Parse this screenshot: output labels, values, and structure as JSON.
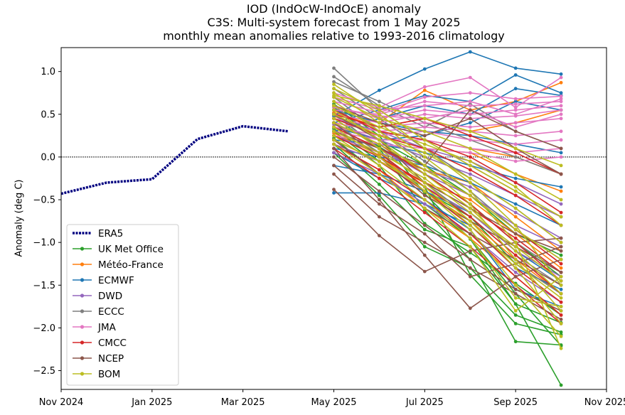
{
  "chart_data": {
    "type": "line",
    "title_lines": [
      "IOD (IndOcW-IndOcE) anomaly",
      "C3S: Multi-system forecast from 1 May 2025",
      "monthly mean anomalies relative to 1993-2016 climatology"
    ],
    "xlabel": "",
    "ylabel": "Anomaly (deg C)",
    "ylim": [
      -2.72,
      1.28
    ],
    "xlim_months": [
      "2024-11",
      "2025-11"
    ],
    "yticks": [
      1.0,
      0.5,
      0.0,
      -0.5,
      -1.0,
      -1.5,
      -2.0,
      -2.5
    ],
    "ytick_labels": [
      "1.0",
      "0.5",
      "0.0",
      "−0.5",
      "−1.0",
      "−1.5",
      "−2.0",
      "−2.5"
    ],
    "xticks": [
      "2024-11",
      "2025-01",
      "2025-03",
      "2025-05",
      "2025-07",
      "2025-09",
      "2025-11"
    ],
    "xtick_labels": [
      "Nov 2024",
      "Jan 2025",
      "Mar 2025",
      "May 2025",
      "Jul 2025",
      "Sep 2025",
      "Nov 2025"
    ],
    "zero_line": true,
    "legend_position": "lower-left",
    "forecast_months": [
      "2025-05",
      "2025-06",
      "2025-07",
      "2025-08",
      "2025-09",
      "2025-10"
    ],
    "observed": {
      "name": "ERA5",
      "color": "#000080",
      "style": "dotted",
      "x": [
        "2024-11",
        "2024-12",
        "2025-01",
        "2025-02",
        "2025-03",
        "2025-04"
      ],
      "y": [
        -0.43,
        -0.3,
        -0.26,
        0.21,
        0.36,
        0.3
      ]
    },
    "systems": [
      {
        "name": "UK Met Office",
        "color": "#2ca02c",
        "members": [
          [
            0.62,
            0.25,
            -0.43,
            -0.96,
            -1.72,
            -2.67
          ],
          [
            0.51,
            0.1,
            -0.62,
            -1.2,
            -2.16,
            -2.2
          ],
          [
            0.4,
            0.05,
            -0.35,
            -1.38,
            -1.95,
            -2.08
          ],
          [
            0.3,
            -0.1,
            -0.78,
            -1.12,
            -1.48,
            -1.85
          ],
          [
            0.22,
            -0.2,
            -0.55,
            -0.95,
            -1.6,
            -2.21
          ],
          [
            0.15,
            -0.32,
            -0.85,
            -1.05,
            -1.72,
            -1.94
          ],
          [
            0.45,
            0.12,
            -0.2,
            -0.55,
            -1.0,
            -1.4
          ],
          [
            0.05,
            -0.45,
            -1.05,
            -1.3,
            -1.85,
            -2.05
          ],
          [
            0.33,
            -0.05,
            -0.4,
            -0.7,
            -1.25,
            -1.6
          ],
          [
            0.58,
            0.2,
            -0.1,
            -0.45,
            -0.9,
            -1.15
          ]
        ]
      },
      {
        "name": "Météo-France",
        "color": "#ff7f0e",
        "members": [
          [
            0.55,
            0.4,
            0.78,
            0.55,
            0.65,
            0.87
          ],
          [
            0.35,
            0.1,
            -0.15,
            -0.3,
            -0.7,
            -1.1
          ],
          [
            0.48,
            0.25,
            0.1,
            0.05,
            -0.2,
            -0.4
          ],
          [
            0.2,
            -0.05,
            -0.3,
            -0.5,
            -0.9,
            -1.3
          ],
          [
            0.4,
            0.3,
            0.2,
            0.1,
            0.0,
            -0.2
          ],
          [
            0.28,
            0.02,
            -0.4,
            -0.75,
            -1.2,
            -1.6
          ],
          [
            0.52,
            0.35,
            0.45,
            0.3,
            0.4,
            0.55
          ],
          [
            0.15,
            -0.15,
            -0.6,
            -0.95,
            -1.4,
            -1.85
          ]
        ]
      },
      {
        "name": "ECMWF",
        "color": "#1f77b4",
        "members": [
          [
            0.48,
            0.78,
            1.03,
            1.23,
            1.04,
            0.97
          ],
          [
            0.4,
            0.55,
            0.72,
            0.65,
            0.96,
            0.75
          ],
          [
            0.3,
            0.45,
            0.6,
            0.5,
            0.8,
            0.72
          ],
          [
            -0.42,
            -0.42,
            -0.55,
            -0.8,
            -1.3,
            -1.55
          ],
          [
            0.1,
            0.0,
            -0.1,
            -0.3,
            -0.55,
            -0.8
          ],
          [
            0.2,
            0.15,
            0.05,
            -0.1,
            -0.25,
            -0.35
          ],
          [
            -0.1,
            -0.2,
            -0.4,
            -0.65,
            -1.1,
            -1.45
          ],
          [
            0.55,
            0.4,
            0.3,
            0.25,
            0.15,
            0.05
          ],
          [
            0.05,
            -0.25,
            -0.5,
            -0.85,
            -1.55,
            -1.75
          ],
          [
            0.35,
            0.2,
            0.25,
            0.4,
            0.65,
            0.55
          ]
        ]
      },
      {
        "name": "DWD",
        "color": "#9467bd",
        "members": [
          [
            0.3,
            0.1,
            -0.2,
            -0.45,
            -0.8,
            -1.05
          ],
          [
            0.15,
            -0.05,
            -0.35,
            -0.65,
            -1.1,
            -1.4
          ],
          [
            0.45,
            0.3,
            0.1,
            -0.05,
            -0.3,
            -0.55
          ],
          [
            0.05,
            -0.2,
            -0.55,
            -0.9,
            -1.35,
            -1.7
          ],
          [
            0.25,
            0.05,
            -0.15,
            -0.35,
            -0.65,
            -0.95
          ],
          [
            0.38,
            0.2,
            0.0,
            -0.2,
            -0.45,
            -0.7
          ]
        ]
      },
      {
        "name": "ECCC",
        "color": "#7f7f7f",
        "members": [
          [
            1.04,
            0.55,
            0.2,
            -0.1,
            -0.4,
            -0.7
          ],
          [
            0.94,
            0.6,
            0.35,
            0.62,
            0.3,
            0.1
          ],
          [
            0.8,
            0.45,
            0.1,
            -0.25,
            -0.6,
            -1.0
          ],
          [
            0.7,
            0.3,
            -0.05,
            -0.4,
            -0.85,
            -1.2
          ],
          [
            0.6,
            0.2,
            -0.2,
            -0.55,
            -1.0,
            -1.35
          ],
          [
            0.5,
            0.1,
            -0.3,
            -0.7,
            -1.15,
            -1.5
          ],
          [
            0.88,
            0.65,
            0.4,
            0.2,
            0.0,
            -0.2
          ],
          [
            0.4,
            0.05,
            -0.4,
            -0.8,
            -1.25,
            -1.6
          ]
        ]
      },
      {
        "name": "JMA",
        "color": "#e377c2",
        "members": [
          [
            0.75,
            0.58,
            0.82,
            0.93,
            0.58,
            0.93
          ],
          [
            0.65,
            0.52,
            0.7,
            0.75,
            0.68,
            0.71
          ],
          [
            0.55,
            0.5,
            0.65,
            0.6,
            0.62,
            0.65
          ],
          [
            0.6,
            0.45,
            0.55,
            0.5,
            0.55,
            0.6
          ],
          [
            0.5,
            0.4,
            0.5,
            0.45,
            0.48,
            0.55
          ],
          [
            0.45,
            0.35,
            0.4,
            0.35,
            0.4,
            0.45
          ],
          [
            0.4,
            0.3,
            0.35,
            0.3,
            0.25,
            0.3
          ],
          [
            0.35,
            0.25,
            0.3,
            0.2,
            0.15,
            0.2
          ],
          [
            0.7,
            0.55,
            0.6,
            0.65,
            0.5,
            0.68
          ],
          [
            0.3,
            0.2,
            0.2,
            0.1,
            0.05,
            0.1
          ],
          [
            0.58,
            0.48,
            0.45,
            0.55,
            0.35,
            0.5
          ],
          [
            0.25,
            0.15,
            0.1,
            0.05,
            -0.05,
            0.0
          ]
        ]
      },
      {
        "name": "CMCC",
        "color": "#d62728",
        "members": [
          [
            0.4,
            0.15,
            -0.2,
            -0.55,
            -1.0,
            -1.45
          ],
          [
            0.3,
            0.05,
            -0.35,
            -0.7,
            -1.15,
            -1.6
          ],
          [
            0.5,
            0.35,
            0.45,
            0.25,
            0.05,
            -0.2
          ],
          [
            0.2,
            -0.05,
            -0.4,
            -0.8,
            -1.3,
            -1.7
          ],
          [
            0.45,
            0.25,
            0.1,
            -0.15,
            -0.45,
            -0.8
          ],
          [
            0.35,
            0.1,
            -0.15,
            -0.45,
            -0.85,
            -1.25
          ],
          [
            0.25,
            0.0,
            -0.3,
            -0.6,
            -0.95,
            -1.35
          ],
          [
            0.15,
            -0.15,
            -0.5,
            -0.9,
            -1.4,
            -1.85
          ],
          [
            0.55,
            0.3,
            0.2,
            0.0,
            -0.3,
            -0.65
          ],
          [
            0.1,
            -0.25,
            -0.65,
            -1.05,
            -1.5,
            -1.95
          ]
        ]
      },
      {
        "name": "NCEP",
        "color": "#8c564b",
        "members": [
          [
            -0.38,
            -0.92,
            -1.34,
            -1.1,
            -1.0,
            -0.95
          ],
          [
            0.1,
            -0.5,
            -1.15,
            -1.77,
            -1.4,
            -1.2
          ],
          [
            0.3,
            0.1,
            -0.1,
            0.55,
            0.3,
            0.1
          ],
          [
            0.5,
            0.2,
            -0.3,
            -0.6,
            -0.9,
            -1.1
          ],
          [
            0.0,
            -0.4,
            -0.8,
            -1.2,
            -1.55,
            -1.8
          ],
          [
            0.6,
            0.4,
            0.25,
            0.45,
            0.1,
            -0.2
          ],
          [
            -0.2,
            -0.7,
            -1.0,
            -1.3,
            -1.6,
            -1.9
          ],
          [
            0.2,
            -0.2,
            -0.6,
            -0.9,
            -1.2,
            -1.5
          ],
          [
            0.4,
            0.0,
            -0.45,
            -0.75,
            -1.05,
            -1.35
          ],
          [
            -0.1,
            -0.55,
            -0.9,
            -1.4,
            -1.25,
            -1.05
          ]
        ]
      },
      {
        "name": "BOM",
        "color": "#bcbd22",
        "members": [
          [
            0.85,
            0.5,
            0.1,
            -0.3,
            -0.8,
            -1.5
          ],
          [
            0.75,
            0.4,
            0.0,
            -0.4,
            -1.0,
            -2.24
          ],
          [
            0.65,
            0.3,
            -0.1,
            -0.55,
            -1.2,
            -1.8
          ],
          [
            0.55,
            0.2,
            -0.2,
            -0.6,
            -1.1,
            -1.6
          ],
          [
            0.45,
            0.1,
            -0.3,
            -0.75,
            -1.3,
            -1.95
          ],
          [
            0.35,
            0.0,
            -0.4,
            -0.85,
            -1.5,
            -2.1
          ],
          [
            0.25,
            -0.1,
            -0.5,
            -0.95,
            -1.65,
            -1.75
          ],
          [
            0.15,
            -0.2,
            -0.6,
            -1.05,
            -1.8,
            -1.4
          ],
          [
            0.8,
            0.55,
            0.2,
            -0.1,
            -0.4,
            -0.7
          ],
          [
            0.7,
            0.45,
            0.3,
            0.1,
            -0.2,
            -0.5
          ],
          [
            0.6,
            0.35,
            0.15,
            -0.05,
            -0.35,
            -0.8
          ],
          [
            0.5,
            0.25,
            0.05,
            -0.25,
            -0.6,
            -1.0
          ],
          [
            0.4,
            0.15,
            -0.15,
            -0.45,
            -0.85,
            -1.2
          ],
          [
            0.3,
            0.05,
            -0.25,
            -0.65,
            -1.05,
            -1.45
          ],
          [
            0.2,
            -0.05,
            -0.35,
            -0.8,
            -1.25,
            -1.65
          ],
          [
            0.72,
            0.6,
            0.45,
            0.3,
            0.1,
            -0.1
          ]
        ]
      }
    ]
  }
}
